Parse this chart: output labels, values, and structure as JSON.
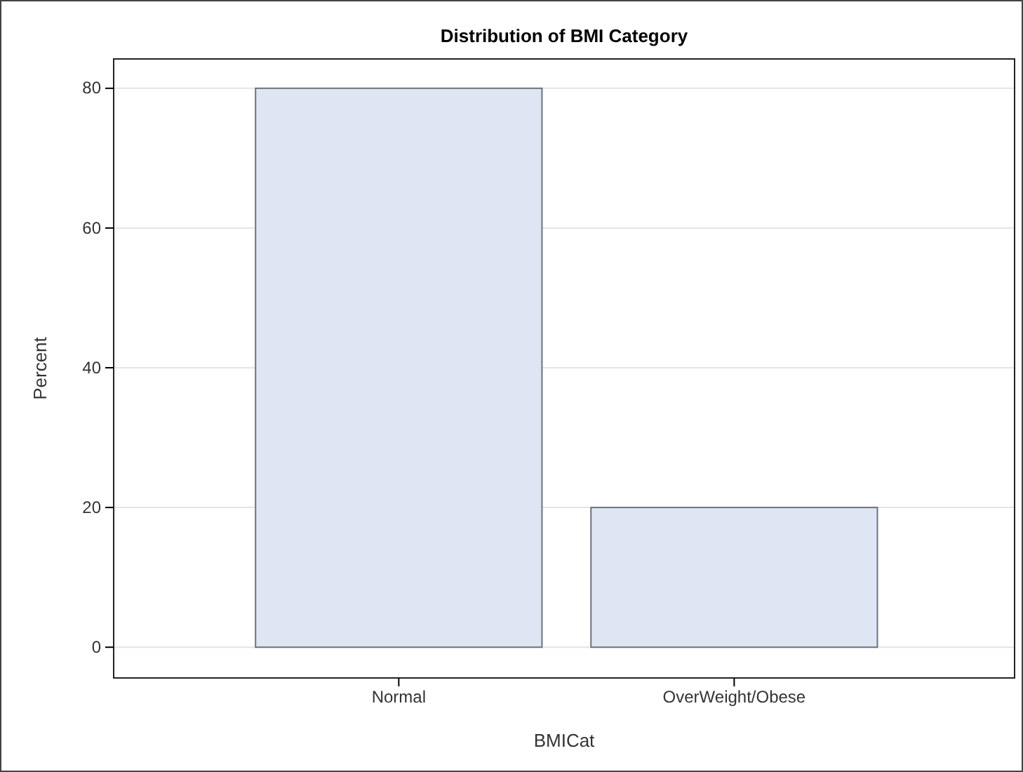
{
  "chart_data": {
    "type": "bar",
    "title": "Distribution of BMI Category",
    "xlabel": "BMICat",
    "ylabel": "Percent",
    "categories": [
      "Normal",
      "OverWeight/Obese"
    ],
    "values": [
      80,
      20
    ],
    "color": "#dde6f2",
    "ylim": [
      -4.4,
      84.2
    ],
    "yticks": [
      0,
      20,
      40,
      60,
      80
    ],
    "grid": "y"
  }
}
